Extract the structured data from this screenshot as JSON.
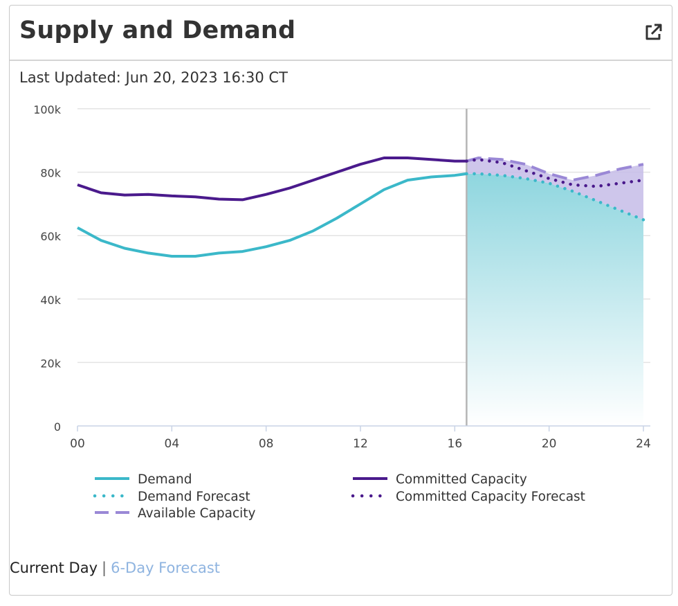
{
  "widget": {
    "title": "Supply and Demand",
    "last_updated": "Last Updated: Jun 20, 2023 16:30 CT"
  },
  "footer": {
    "current_day": "Current Day",
    "separator": "|",
    "forecast_link": "6-Day Forecast"
  },
  "colors": {
    "demand": "#3bb8c9",
    "committed": "#4a1a8c",
    "available": "#9a88d6",
    "fill_capacity": "#c6bce8",
    "fill_demand_top": "#8fd6df",
    "grid": "#e3e3e3",
    "now_line": "#b5b5b5"
  },
  "chart_data": {
    "type": "line",
    "title": "",
    "xlabel": "",
    "ylabel": "",
    "xlim": [
      0,
      24
    ],
    "ylim": [
      0,
      100000
    ],
    "x_ticks": [
      0,
      4,
      8,
      12,
      16,
      20,
      24
    ],
    "x_tick_labels": [
      "00",
      "04",
      "08",
      "12",
      "16",
      "20",
      "24"
    ],
    "y_ticks": [
      0,
      20000,
      40000,
      60000,
      80000,
      100000
    ],
    "y_tick_labels": [
      "0",
      "20k",
      "40k",
      "60k",
      "80k",
      "100k"
    ],
    "current_time": 16.5,
    "series": [
      {
        "name": "Demand",
        "style": "solid",
        "x": [
          0,
          1,
          2,
          3,
          4,
          5,
          6,
          7,
          8,
          9,
          10,
          11,
          12,
          13,
          14,
          15,
          16,
          16.5
        ],
        "values": [
          62500,
          58500,
          56000,
          54500,
          53500,
          53500,
          54500,
          55000,
          56500,
          58500,
          61500,
          65500,
          70000,
          74500,
          77500,
          78500,
          79000,
          79500
        ]
      },
      {
        "name": "Committed Capacity",
        "style": "solid",
        "x": [
          0,
          1,
          2,
          3,
          4,
          5,
          6,
          7,
          8,
          9,
          10,
          11,
          12,
          13,
          14,
          15,
          16,
          16.5
        ],
        "values": [
          76000,
          73500,
          72800,
          73000,
          72500,
          72200,
          71500,
          71300,
          73000,
          75000,
          77500,
          80000,
          82500,
          84500,
          84500,
          84000,
          83500,
          83500
        ]
      },
      {
        "name": "Demand Forecast",
        "style": "dotted",
        "x": [
          16.5,
          17,
          18,
          19,
          20,
          21,
          22,
          23,
          24
        ],
        "values": [
          79500,
          79500,
          79000,
          78000,
          76500,
          74000,
          71000,
          68000,
          65000
        ]
      },
      {
        "name": "Committed Capacity Forecast",
        "style": "dotted",
        "x": [
          16.5,
          17,
          18,
          19,
          20,
          21,
          22,
          23,
          24
        ],
        "values": [
          83500,
          84000,
          83000,
          80500,
          78000,
          76000,
          75500,
          76500,
          77500
        ]
      },
      {
        "name": "Available Capacity",
        "style": "dashed",
        "x": [
          16.5,
          17,
          18,
          19,
          20,
          21,
          22,
          23,
          24
        ],
        "values": [
          83500,
          84500,
          84000,
          82500,
          79500,
          77500,
          79000,
          81000,
          82500
        ]
      }
    ],
    "legend": [
      {
        "name": "Demand",
        "style": "solid",
        "color": "#3bb8c9"
      },
      {
        "name": "Committed Capacity",
        "style": "solid",
        "color": "#4a1a8c"
      },
      {
        "name": "Demand Forecast",
        "style": "dotted",
        "color": "#3bb8c9"
      },
      {
        "name": "Committed Capacity Forecast",
        "style": "dotted",
        "color": "#4a1a8c"
      },
      {
        "name": "Available Capacity",
        "style": "dashed",
        "color": "#9a88d6"
      }
    ]
  }
}
